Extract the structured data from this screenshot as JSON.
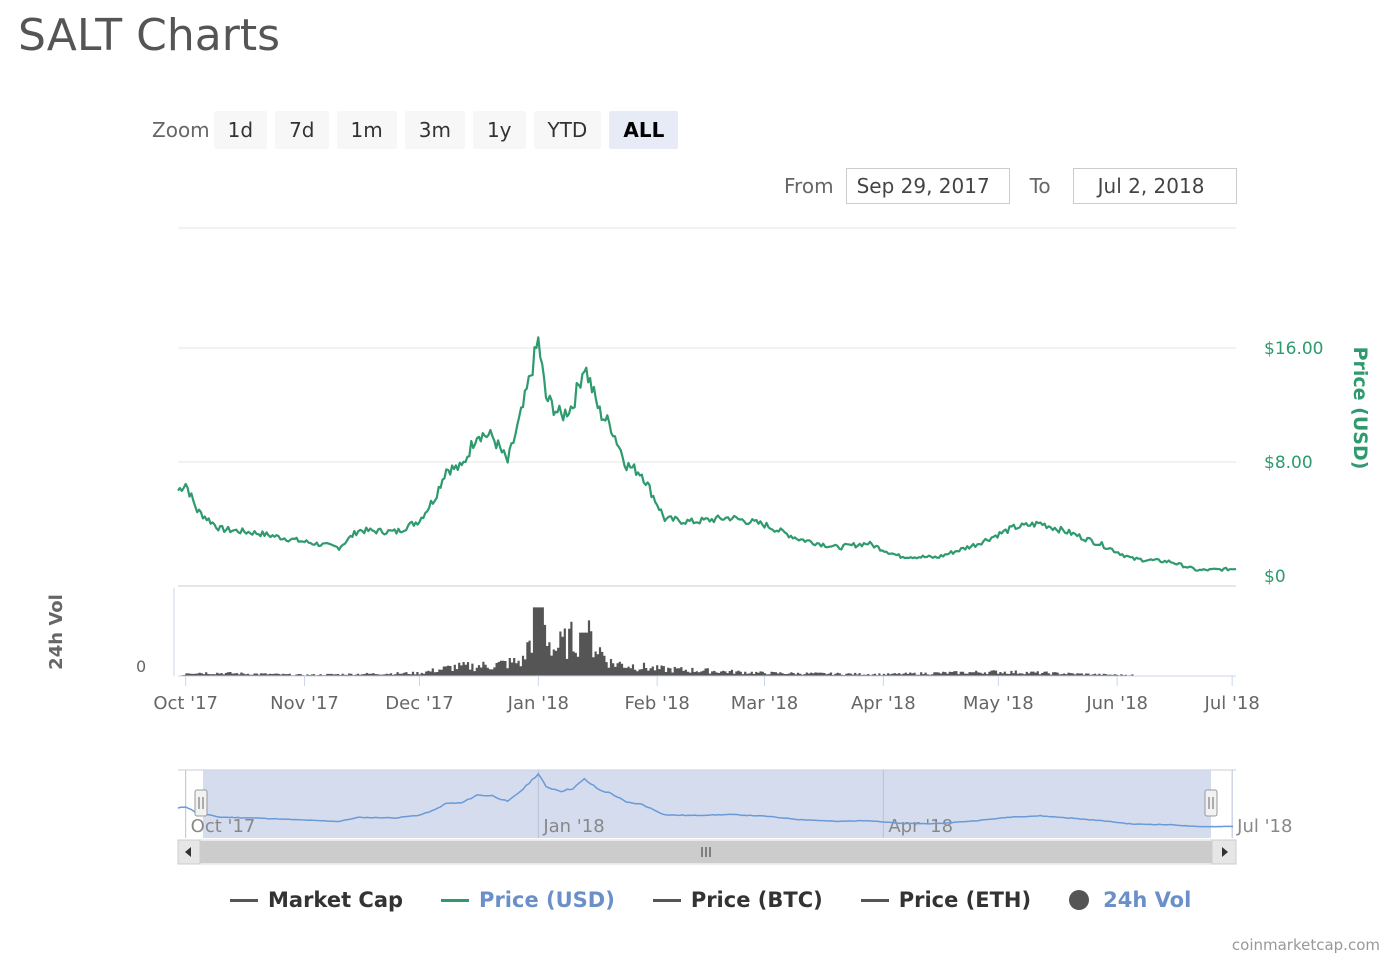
{
  "title": "SALT Charts",
  "zoom": {
    "label": "Zoom",
    "buttons": [
      "1d",
      "7d",
      "1m",
      "3m",
      "1y",
      "YTD",
      "ALL"
    ],
    "active": "ALL"
  },
  "range": {
    "from_label": "From",
    "from_value": "Sep 29, 2017",
    "to_label": "To",
    "to_value": "Jul 2, 2018"
  },
  "colors": {
    "price": "#2e9a6e",
    "volume": "#555555",
    "navigator_line": "#6a9ad8",
    "navigator_fill": "#ccd6eb",
    "legend_active": "#6a8fc9"
  },
  "chart_data": {
    "type": "line",
    "x_ticks": [
      "Oct '17",
      "Nov '17",
      "Dec '17",
      "Jan '18",
      "Feb '18",
      "Mar '18",
      "Apr '18",
      "May '18",
      "Jun '18",
      "Jul '18"
    ],
    "y_ticks": [
      "$0",
      "$8.00",
      "$16.00"
    ],
    "ylabel": "Price (USD)",
    "ylim": [
      0,
      16
    ],
    "volume_label": "24h Vol",
    "volume_ticks": [
      "0"
    ],
    "navigator_ticks": [
      "Oct '17",
      "Jan '18",
      "Apr '18",
      "Jul '18"
    ],
    "series": [
      {
        "name": "Price (USD)",
        "points": [
          [
            "Sep 29, 2017",
            6.0
          ],
          [
            "Oct 1, 2017",
            6.5
          ],
          [
            "Oct 4, 2017",
            4.6
          ],
          [
            "Oct 10, 2017",
            3.3
          ],
          [
            "Oct 20, 2017",
            3.0
          ],
          [
            "Nov 1, 2017",
            2.4
          ],
          [
            "Nov 10, 2017",
            2.0
          ],
          [
            "Nov 15, 2017",
            3.2
          ],
          [
            "Nov 25, 2017",
            3.1
          ],
          [
            "Dec 1, 2017",
            3.9
          ],
          [
            "Dec 5, 2017",
            5.5
          ],
          [
            "Dec 8, 2017",
            7.5
          ],
          [
            "Dec 12, 2017",
            7.6
          ],
          [
            "Dec 16, 2017",
            10.0
          ],
          [
            "Dec 20, 2017",
            9.8
          ],
          [
            "Dec 24, 2017",
            8.0
          ],
          [
            "Dec 28, 2017",
            11.8
          ],
          [
            "Jan 1, 2018",
            16.5
          ],
          [
            "Jan 3, 2018",
            12.5
          ],
          [
            "Jan 7, 2018",
            11.2
          ],
          [
            "Jan 10, 2018",
            12.0
          ],
          [
            "Jan 13, 2018",
            14.8
          ],
          [
            "Jan 17, 2018",
            11.5
          ],
          [
            "Jan 20, 2018",
            10.5
          ],
          [
            "Jan 24, 2018",
            7.8
          ],
          [
            "Jan 28, 2018",
            7.2
          ],
          [
            "Feb 3, 2018",
            4.0
          ],
          [
            "Feb 10, 2018",
            3.8
          ],
          [
            "Feb 20, 2018",
            4.1
          ],
          [
            "Mar 1, 2018",
            3.6
          ],
          [
            "Mar 10, 2018",
            2.6
          ],
          [
            "Mar 20, 2018",
            2.0
          ],
          [
            "Mar 28, 2018",
            2.3
          ],
          [
            "Apr 5, 2018",
            1.4
          ],
          [
            "Apr 15, 2018",
            1.3
          ],
          [
            "Apr 25, 2018",
            2.2
          ],
          [
            "May 5, 2018",
            3.4
          ],
          [
            "May 12, 2018",
            3.7
          ],
          [
            "May 20, 2018",
            3.0
          ],
          [
            "May 28, 2018",
            2.2
          ],
          [
            "Jun 5, 2018",
            1.2
          ],
          [
            "Jun 15, 2018",
            1.0
          ],
          [
            "Jun 22, 2018",
            0.4
          ],
          [
            "Jul 2, 2018",
            0.5
          ]
        ]
      },
      {
        "name": "24h Vol",
        "points": [
          [
            "Oct 1, 2017",
            0.06
          ],
          [
            "Nov 1, 2017",
            0.02
          ],
          [
            "Dec 1, 2017",
            0.05
          ],
          [
            "Dec 10, 2017",
            0.15
          ],
          [
            "Dec 20, 2017",
            0.18
          ],
          [
            "Dec 28, 2017",
            0.25
          ],
          [
            "Jan 1, 2018",
            1.0
          ],
          [
            "Jan 5, 2018",
            0.45
          ],
          [
            "Jan 13, 2018",
            0.72
          ],
          [
            "Jan 20, 2018",
            0.22
          ],
          [
            "Feb 1, 2018",
            0.12
          ],
          [
            "Mar 1, 2018",
            0.05
          ],
          [
            "Apr 1, 2018",
            0.03
          ],
          [
            "May 1, 2018",
            0.07
          ],
          [
            "Jun 1, 2018",
            0.02
          ]
        ]
      }
    ]
  },
  "legend": [
    {
      "label": "Market Cap",
      "marker": "line",
      "color": "#555555",
      "active": false
    },
    {
      "label": "Price (USD)",
      "marker": "line",
      "color": "#2e9a6e",
      "active": true
    },
    {
      "label": "Price (BTC)",
      "marker": "line",
      "color": "#555555",
      "active": false
    },
    {
      "label": "Price (ETH)",
      "marker": "line",
      "color": "#555555",
      "active": false
    },
    {
      "label": "24h Vol",
      "marker": "dot",
      "color": "#555555",
      "active": true
    }
  ],
  "credit": "coinmarketcap.com"
}
